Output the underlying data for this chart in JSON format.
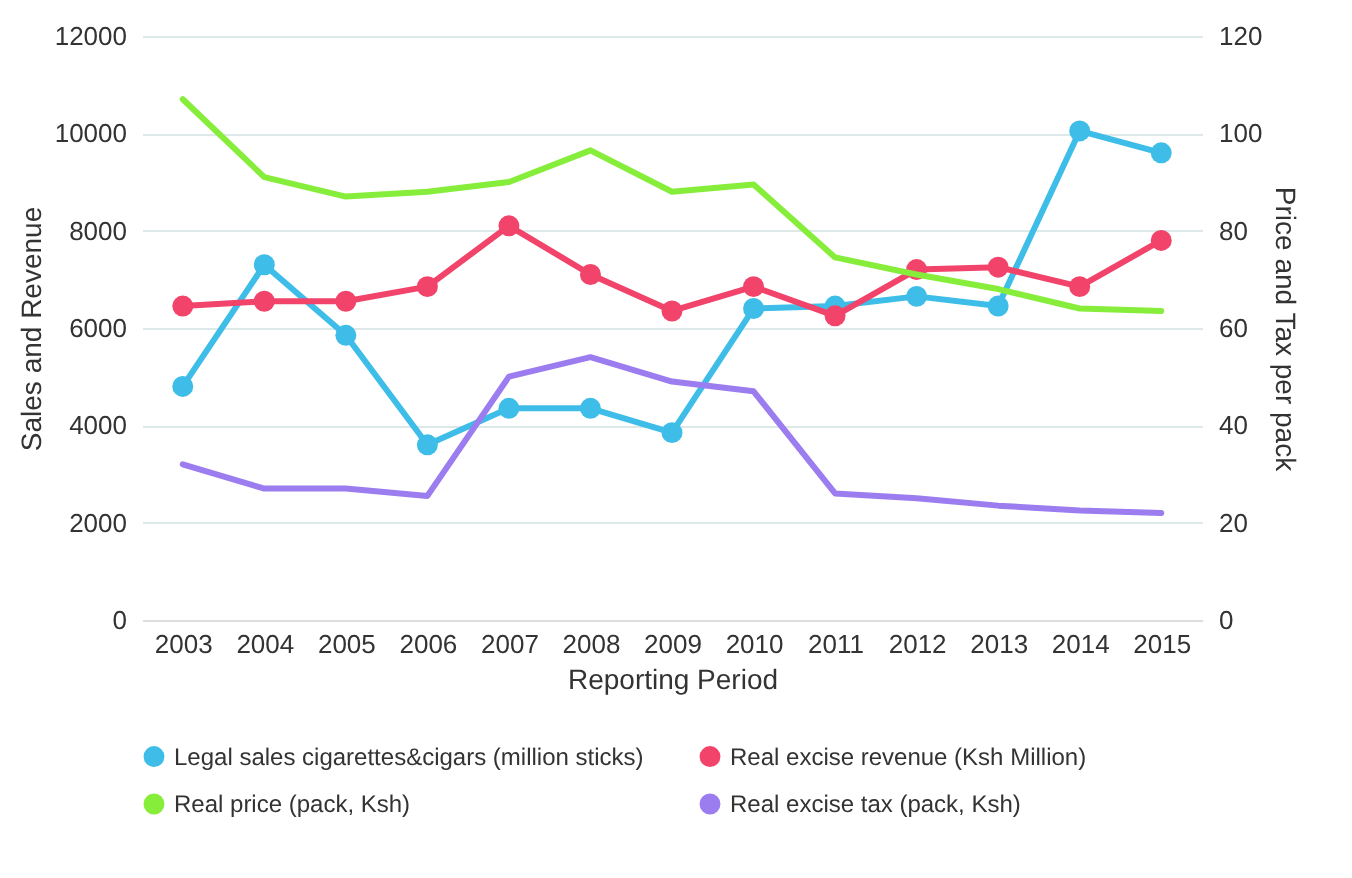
{
  "chart_data": {
    "type": "line",
    "xlabel": "Reporting Period",
    "ylabel": "Sales and Revenue",
    "y2label": "Price and Tax per pack",
    "categories": [
      "2003",
      "2004",
      "2005",
      "2006",
      "2007",
      "2008",
      "2009",
      "2010",
      "2011",
      "2012",
      "2013",
      "2014",
      "2015"
    ],
    "ylim": [
      0,
      12000
    ],
    "yticks": [
      0,
      2000,
      4000,
      6000,
      8000,
      10000,
      12000
    ],
    "y2lim": [
      0,
      120
    ],
    "y2ticks": [
      0,
      20,
      40,
      60,
      80,
      100,
      120
    ],
    "grid": "y",
    "legend": "bottom",
    "line_style": "solid",
    "series": [
      {
        "name": "Legal sales cigarettes&cigars (million sticks)",
        "color": "#3dbde8",
        "marker": "circle",
        "values": [
          4800,
          7300,
          5850,
          3600,
          4350,
          4350,
          3850,
          6400,
          6450,
          6650,
          6450,
          10050,
          9600
        ]
      },
      {
        "name": "Real excise revenue (Ksh Million)",
        "color": "#f2436a",
        "marker": "circle",
        "values": [
          6450,
          6550,
          6550,
          6850,
          8100,
          7100,
          6350,
          6850,
          6250,
          7200,
          7250,
          6850,
          7800
        ]
      },
      {
        "name": "Real price (pack, Ksh)",
        "color": "#86ee3a",
        "marker": "none",
        "axis": "y2",
        "values": [
          107,
          91,
          87,
          88,
          90,
          96.5,
          88,
          89.5,
          74.5,
          71,
          68,
          64,
          63.5
        ]
      },
      {
        "name": "Real excise tax (pack, Ksh)",
        "color": "#9b7df0",
        "marker": "none",
        "axis": "y2",
        "values": [
          32,
          27,
          27,
          25.5,
          50,
          54,
          49,
          47,
          26,
          25,
          23.5,
          22.5,
          22
        ]
      }
    ]
  }
}
